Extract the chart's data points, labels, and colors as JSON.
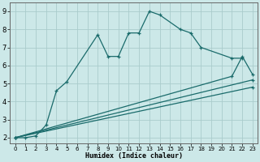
{
  "background_color": "#cce8e8",
  "grid_color": "#aacccc",
  "line_color": "#1a6b6b",
  "xlabel": "Humidex (Indice chaleur)",
  "xlim": [
    -0.5,
    23.5
  ],
  "ylim": [
    1.7,
    9.5
  ],
  "yticks": [
    2,
    3,
    4,
    5,
    6,
    7,
    8,
    9
  ],
  "xticks": [
    0,
    1,
    2,
    3,
    4,
    5,
    6,
    7,
    8,
    9,
    10,
    11,
    12,
    13,
    14,
    15,
    16,
    17,
    18,
    19,
    20,
    21,
    22,
    23
  ],
  "curve1_x": [
    0,
    1,
    2,
    3,
    4,
    5,
    8,
    9,
    10,
    11,
    12,
    13,
    14,
    16,
    17,
    18,
    21,
    22
  ],
  "curve1_y": [
    2.0,
    2.0,
    2.1,
    2.7,
    4.6,
    5.1,
    7.7,
    6.5,
    6.5,
    7.8,
    7.8,
    9.0,
    8.8,
    8.0,
    7.8,
    7.0,
    6.4,
    6.4
  ],
  "curve2_x": [
    0,
    21,
    22,
    23
  ],
  "curve2_y": [
    2.0,
    5.4,
    6.5,
    5.5
  ],
  "curve3_x": [
    0,
    23
  ],
  "curve3_y": [
    2.0,
    5.2
  ],
  "curve4_x": [
    0,
    23
  ],
  "curve4_y": [
    2.0,
    4.8
  ]
}
